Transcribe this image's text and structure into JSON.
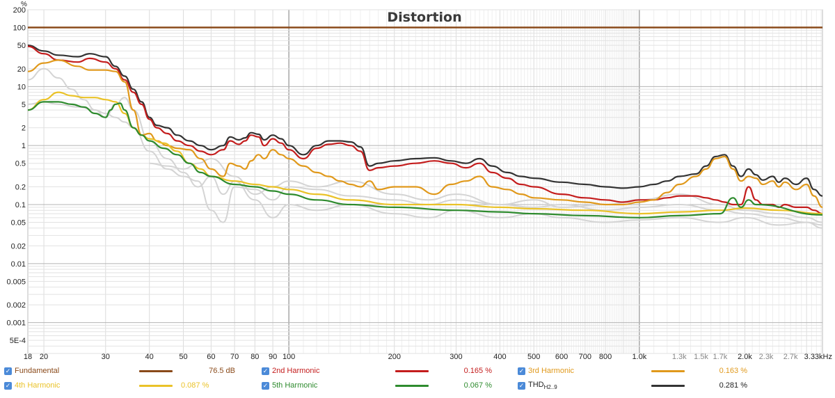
{
  "chart_data": {
    "type": "line",
    "title": "Distortion",
    "y_unit": "%",
    "x_scale": "log",
    "y_scale": "log",
    "xlim": [
      18,
      3330
    ],
    "ylim": [
      0.0003,
      200
    ],
    "x_ticks": [
      {
        "v": 18,
        "label": "18"
      },
      {
        "v": 20,
        "label": "20"
      },
      {
        "v": 30,
        "label": "30"
      },
      {
        "v": 40,
        "label": "40"
      },
      {
        "v": 50,
        "label": "50"
      },
      {
        "v": 60,
        "label": "60"
      },
      {
        "v": 70,
        "label": "70"
      },
      {
        "v": 80,
        "label": "80"
      },
      {
        "v": 90,
        "label": "90"
      },
      {
        "v": 100,
        "label": "100"
      },
      {
        "v": 200,
        "label": "200"
      },
      {
        "v": 300,
        "label": "300"
      },
      {
        "v": 400,
        "label": "400"
      },
      {
        "v": 500,
        "label": "500"
      },
      {
        "v": 600,
        "label": "600"
      },
      {
        "v": 700,
        "label": "700"
      },
      {
        "v": 800,
        "label": "800"
      },
      {
        "v": 1000,
        "label": "1.0k"
      },
      {
        "v": 1300,
        "label": "1.3k",
        "minor": true
      },
      {
        "v": 1500,
        "label": "1.5k",
        "minor": true
      },
      {
        "v": 1700,
        "label": "1.7k",
        "minor": true
      },
      {
        "v": 2000,
        "label": "2.0k"
      },
      {
        "v": 2300,
        "label": "2.3k",
        "minor": true
      },
      {
        "v": 2700,
        "label": "2.7k",
        "minor": true
      },
      {
        "v": 3330,
        "label": "3.33kHz"
      }
    ],
    "y_ticks": [
      {
        "v": 200,
        "label": "200"
      },
      {
        "v": 100,
        "label": "100"
      },
      {
        "v": 50,
        "label": "50"
      },
      {
        "v": 20,
        "label": "20"
      },
      {
        "v": 10,
        "label": "10"
      },
      {
        "v": 5,
        "label": "5"
      },
      {
        "v": 2,
        "label": "2"
      },
      {
        "v": 1,
        "label": "1"
      },
      {
        "v": 0.5,
        "label": "0.5"
      },
      {
        "v": 0.2,
        "label": "0.2"
      },
      {
        "v": 0.1,
        "label": "0.1"
      },
      {
        "v": 0.05,
        "label": "0.05"
      },
      {
        "v": 0.02,
        "label": "0.02"
      },
      {
        "v": 0.01,
        "label": "0.01"
      },
      {
        "v": 0.005,
        "label": "0.005"
      },
      {
        "v": 0.002,
        "label": "0.002"
      },
      {
        "v": 0.001,
        "label": "0.001"
      },
      {
        "v": 0.0005,
        "label": "5E-4"
      }
    ],
    "grid": true,
    "series": [
      {
        "name": "Fundamental",
        "color": "#8a4a1a",
        "x": [
          18,
          3330
        ],
        "y": [
          100,
          100
        ]
      },
      {
        "name": "THD H2..9",
        "color": "#333333",
        "x": [
          18,
          20,
          22,
          25,
          27,
          30,
          32,
          34,
          36,
          38,
          40,
          42,
          45,
          48,
          52,
          56,
          60,
          65,
          68,
          72,
          75,
          78,
          82,
          85,
          90,
          95,
          100,
          110,
          120,
          130,
          140,
          150,
          160,
          170,
          180,
          200,
          230,
          260,
          290,
          320,
          350,
          380,
          420,
          460,
          500,
          600,
          700,
          800,
          900,
          1000,
          1100,
          1200,
          1300,
          1450,
          1550,
          1650,
          1750,
          1850,
          1950,
          2050,
          2150,
          2250,
          2400,
          2500,
          2600,
          2800,
          3000,
          3150,
          3330
        ],
        "y": [
          50,
          40,
          34,
          32,
          36,
          32,
          22,
          15,
          9,
          5.5,
          3,
          2.2,
          2,
          1.5,
          1.2,
          1.0,
          0.85,
          1.0,
          1.4,
          1.25,
          1.35,
          1.65,
          1.55,
          1.25,
          1.5,
          1.3,
          1.0,
          0.7,
          1.0,
          1.2,
          1.2,
          1.15,
          0.95,
          0.45,
          0.5,
          0.55,
          0.6,
          0.62,
          0.55,
          0.5,
          0.6,
          0.45,
          0.35,
          0.3,
          0.28,
          0.24,
          0.22,
          0.2,
          0.19,
          0.2,
          0.22,
          0.25,
          0.3,
          0.33,
          0.45,
          0.65,
          0.7,
          0.45,
          0.3,
          0.4,
          0.32,
          0.26,
          0.3,
          0.24,
          0.28,
          0.22,
          0.28,
          0.18,
          0.14
        ]
      },
      {
        "name": "2nd Harmonic",
        "color": "#c41d1d",
        "x": [
          18,
          20,
          22,
          25,
          27,
          30,
          32,
          34,
          36,
          38,
          40,
          42,
          45,
          48,
          52,
          56,
          60,
          65,
          68,
          72,
          75,
          78,
          82,
          85,
          90,
          95,
          100,
          110,
          120,
          130,
          140,
          150,
          160,
          170,
          180,
          200,
          230,
          260,
          290,
          320,
          350,
          380,
          420,
          460,
          500,
          600,
          700,
          800,
          900,
          1000,
          1100,
          1200,
          1300,
          1450,
          1550,
          1650,
          1750,
          1850,
          1950,
          2050,
          2150,
          2250,
          2400,
          2500,
          2600,
          2800,
          3000,
          3150,
          3330
        ],
        "y": [
          48,
          36,
          28,
          26,
          30,
          26,
          20,
          13,
          8,
          5,
          2.8,
          2.0,
          1.6,
          1.2,
          1.0,
          0.8,
          0.7,
          0.85,
          1.2,
          1.05,
          1.2,
          1.5,
          1.4,
          1.0,
          1.3,
          1.1,
          0.85,
          0.6,
          0.9,
          1.05,
          1.1,
          1.0,
          0.8,
          0.38,
          0.42,
          0.45,
          0.5,
          0.55,
          0.5,
          0.42,
          0.5,
          0.35,
          0.28,
          0.22,
          0.2,
          0.15,
          0.13,
          0.12,
          0.11,
          0.12,
          0.12,
          0.13,
          0.14,
          0.14,
          0.13,
          0.12,
          0.11,
          0.1,
          0.1,
          0.2,
          0.12,
          0.1,
          0.1,
          0.09,
          0.1,
          0.09,
          0.09,
          0.08,
          0.07
        ]
      },
      {
        "name": "3rd Harmonic",
        "color": "#e0991c",
        "x": [
          18,
          20,
          22,
          25,
          27,
          30,
          32,
          34,
          36,
          38,
          40,
          42,
          45,
          48,
          52,
          56,
          60,
          65,
          68,
          72,
          75,
          78,
          82,
          85,
          90,
          95,
          100,
          110,
          120,
          130,
          140,
          150,
          160,
          170,
          180,
          200,
          230,
          260,
          290,
          320,
          350,
          380,
          420,
          460,
          500,
          600,
          700,
          800,
          900,
          1000,
          1100,
          1200,
          1300,
          1450,
          1550,
          1650,
          1750,
          1850,
          1950,
          2050,
          2150,
          2250,
          2400,
          2500,
          2600,
          2800,
          3000,
          3150,
          3330
        ],
        "y": [
          18,
          25,
          28,
          22,
          19,
          19,
          18,
          12,
          4,
          1.5,
          1.6,
          1.2,
          1.0,
          0.9,
          0.85,
          0.6,
          0.4,
          0.3,
          0.5,
          0.45,
          0.4,
          0.55,
          0.7,
          0.6,
          0.85,
          0.7,
          0.6,
          0.45,
          0.35,
          0.3,
          0.25,
          0.22,
          0.2,
          0.25,
          0.18,
          0.2,
          0.2,
          0.15,
          0.22,
          0.25,
          0.3,
          0.2,
          0.18,
          0.15,
          0.13,
          0.12,
          0.11,
          0.1,
          0.1,
          0.11,
          0.12,
          0.16,
          0.22,
          0.3,
          0.4,
          0.6,
          0.65,
          0.4,
          0.25,
          0.3,
          0.28,
          0.22,
          0.25,
          0.2,
          0.24,
          0.18,
          0.22,
          0.14,
          0.09
        ]
      },
      {
        "name": "4th Harmonic",
        "color": "#eac228",
        "x": [
          18,
          20,
          22,
          24,
          26,
          28,
          30,
          32,
          34,
          36,
          38,
          40,
          44,
          48,
          52,
          56,
          60,
          70,
          80,
          90,
          100,
          120,
          150,
          200,
          300,
          400,
          500,
          700,
          1000,
          1300,
          1700,
          2000,
          2500,
          3330
        ],
        "y": [
          4,
          6,
          8,
          7,
          6.5,
          6.5,
          6,
          5.5,
          3.5,
          2,
          1.5,
          1.3,
          1.1,
          0.8,
          0.5,
          0.4,
          0.3,
          0.25,
          0.22,
          0.2,
          0.18,
          0.15,
          0.12,
          0.1,
          0.1,
          0.09,
          0.085,
          0.08,
          0.07,
          0.075,
          0.08,
          0.087,
          0.08,
          0.07
        ]
      },
      {
        "name": "5th Harmonic",
        "color": "#2e8b2e",
        "x": [
          18,
          20,
          22,
          24,
          26,
          28,
          30,
          31,
          32,
          33,
          34,
          36,
          38,
          40,
          44,
          48,
          52,
          56,
          60,
          70,
          80,
          90,
          100,
          120,
          150,
          200,
          300,
          400,
          500,
          700,
          1000,
          1300,
          1700,
          1850,
          1950,
          2050,
          2150,
          3330
        ],
        "y": [
          4,
          5.5,
          5.5,
          5,
          4.5,
          3.5,
          3,
          4,
          5,
          5.2,
          4,
          2,
          1.5,
          1.2,
          0.9,
          0.7,
          0.5,
          0.35,
          0.3,
          0.22,
          0.2,
          0.17,
          0.15,
          0.12,
          0.1,
          0.09,
          0.08,
          0.075,
          0.07,
          0.065,
          0.06,
          0.065,
          0.07,
          0.13,
          0.09,
          0.12,
          0.1,
          0.067
        ]
      },
      {
        "name": "",
        "color": "#d4d4d4",
        "x": [
          18,
          20,
          22,
          24,
          26,
          28,
          30,
          32,
          34,
          36,
          40,
          45,
          50,
          55,
          60,
          65,
          70,
          80,
          90,
          100,
          120,
          150,
          200,
          250,
          300,
          400,
          500,
          600,
          800,
          1000,
          1300,
          1700,
          2000,
          2500,
          3000,
          3330
        ],
        "y": [
          13,
          20,
          14,
          9,
          6,
          4,
          3,
          5,
          6.5,
          4,
          1.2,
          0.6,
          0.35,
          0.2,
          0.3,
          0.15,
          0.25,
          0.12,
          0.06,
          0.1,
          0.08,
          0.1,
          0.07,
          0.06,
          0.08,
          0.06,
          0.07,
          0.06,
          0.05,
          0.055,
          0.06,
          0.05,
          0.06,
          0.045,
          0.05,
          0.04
        ]
      },
      {
        "name": "",
        "color": "#d4d4d4",
        "x": [
          18,
          20,
          22,
          25,
          28,
          30,
          32,
          34,
          36,
          40,
          45,
          50,
          55,
          60,
          65,
          70,
          80,
          90,
          100,
          120,
          150,
          200,
          250,
          300,
          400,
          500,
          600,
          800,
          1000,
          1300,
          1700,
          2000,
          2500,
          3000,
          3330
        ],
        "y": [
          5,
          5.5,
          5,
          4.5,
          4,
          3.5,
          3,
          2.5,
          2,
          0.8,
          0.4,
          0.3,
          0.25,
          0.08,
          0.05,
          0.2,
          0.18,
          0.12,
          0.2,
          0.18,
          0.14,
          0.12,
          0.1,
          0.12,
          0.1,
          0.09,
          0.1,
          0.08,
          0.09,
          0.1,
          0.08,
          0.07,
          0.06,
          0.05,
          0.045
        ]
      },
      {
        "name": "",
        "color": "#d4d4d4",
        "x": [
          40,
          45,
          50,
          55,
          60,
          70,
          80,
          90,
          100,
          120,
          150,
          200,
          250,
          300,
          400,
          500,
          600,
          800,
          1000,
          1300,
          1700,
          2000,
          2500,
          3000,
          3330
        ],
        "y": [
          0.5,
          0.45,
          0.4,
          0.5,
          0.6,
          0.3,
          0.15,
          0.2,
          0.25,
          0.2,
          0.25,
          0.15,
          0.12,
          0.15,
          0.1,
          0.12,
          0.09,
          0.1,
          0.12,
          0.15,
          0.1,
          0.08,
          0.07,
          0.06,
          0.05
        ]
      }
    ]
  },
  "legend": {
    "items": [
      {
        "label": "Fundamental",
        "color": "#8a4a1a",
        "value": "76.5 dB"
      },
      {
        "label": "2nd Harmonic",
        "color": "#c41d1d",
        "value": "0.165 %"
      },
      {
        "label": "3rd Harmonic",
        "color": "#e0991c",
        "value": "0.163 %"
      },
      {
        "label": "4th Harmonic",
        "color": "#eac228",
        "value": "0.087 %"
      },
      {
        "label": "5th Harmonic",
        "color": "#2e8b2e",
        "value": "0.067 %"
      },
      {
        "label": "THD",
        "sub": "H2..9",
        "color": "#333333",
        "value": "0.281 %"
      }
    ]
  }
}
